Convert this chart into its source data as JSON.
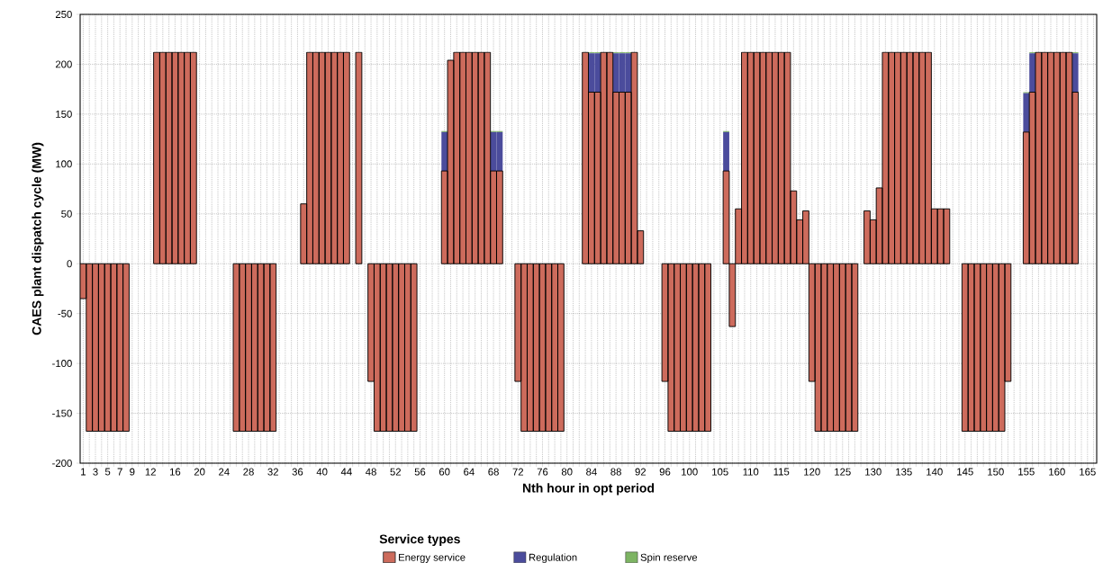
{
  "chart_data": {
    "type": "bar",
    "stacked": true,
    "xlabel": "Nth hour in opt period",
    "ylabel": "CAES plant dispatch cycle (MW)",
    "legend_title": "Service types",
    "legend": "bottom",
    "grid": true,
    "categories": [
      "1",
      null,
      "3",
      null,
      "5",
      null,
      "7",
      null,
      "9",
      null,
      null,
      "12",
      null,
      null,
      null,
      "16",
      null,
      null,
      null,
      "20",
      null,
      null,
      null,
      "24",
      null,
      null,
      null,
      "28",
      null,
      null,
      null,
      "32",
      null,
      null,
      null,
      "36",
      null,
      null,
      null,
      "40",
      null,
      null,
      null,
      "44",
      null,
      null,
      null,
      "48",
      null,
      null,
      null,
      "52",
      null,
      null,
      null,
      "56",
      null,
      null,
      null,
      "60",
      null,
      null,
      null,
      "64",
      null,
      null,
      null,
      "68",
      null,
      null,
      null,
      "72",
      null,
      null,
      null,
      "76",
      null,
      null,
      null,
      "80",
      null,
      null,
      null,
      "84",
      null,
      null,
      null,
      "88",
      null,
      null,
      null,
      "92",
      null,
      null,
      null,
      "96",
      null,
      null,
      null,
      "100",
      null,
      null,
      null,
      null,
      "105",
      null,
      null,
      null,
      null,
      "110",
      null,
      null,
      null,
      null,
      "115",
      null,
      null,
      null,
      null,
      "120",
      null,
      null,
      null,
      null,
      "125",
      null,
      null,
      null,
      null,
      "130",
      null,
      null,
      null,
      null,
      "135",
      null,
      null,
      null,
      null,
      "140",
      null,
      null,
      null,
      null,
      "145",
      null,
      null,
      null,
      null,
      "150",
      null,
      null,
      null,
      null,
      "155",
      null,
      null,
      null,
      null,
      "160",
      null,
      null,
      null,
      null,
      "165",
      null
    ],
    "series": [
      {
        "name": "Energy service",
        "color": "#cd6b5c",
        "values": [
          -35,
          -168,
          -168,
          -168,
          -168,
          -168,
          -168,
          -168,
          0,
          0,
          0,
          0,
          212,
          212,
          212,
          212,
          212,
          212,
          212,
          0,
          0,
          0,
          0,
          0,
          0,
          -168,
          -168,
          -168,
          -168,
          -168,
          -168,
          -168,
          0,
          0,
          0,
          0,
          60,
          212,
          212,
          212,
          212,
          212,
          212,
          212,
          0,
          212,
          0,
          -118,
          -168,
          -168,
          -168,
          -168,
          -168,
          -168,
          -168,
          0,
          0,
          0,
          0,
          93,
          204,
          212,
          212,
          212,
          212,
          212,
          212,
          93,
          93,
          0,
          0,
          -118,
          -168,
          -168,
          -168,
          -168,
          -168,
          -168,
          -168,
          0,
          0,
          0,
          212,
          172,
          172,
          212,
          212,
          172,
          172,
          172,
          212,
          33,
          0,
          0,
          0,
          -118,
          -168,
          -168,
          -168,
          -168,
          -168,
          -168,
          -168,
          0,
          0,
          93,
          -63,
          55,
          212,
          212,
          212,
          212,
          212,
          212,
          212,
          212,
          73,
          44,
          53,
          -118,
          -168,
          -168,
          -168,
          -168,
          -168,
          -168,
          -168,
          0,
          53,
          44,
          76,
          212,
          212,
          212,
          212,
          212,
          212,
          212,
          212,
          55,
          55,
          55,
          0,
          0,
          -168,
          -168,
          -168,
          -168,
          -168,
          -168,
          -168,
          -118,
          0,
          0,
          132,
          172,
          212,
          212,
          212,
          212,
          212,
          212,
          172,
          0,
          0,
          0
        ]
      },
      {
        "name": "Regulation",
        "color": "#4b4c9c",
        "values": [
          0,
          0,
          0,
          0,
          0,
          0,
          0,
          0,
          0,
          0,
          0,
          0,
          0,
          0,
          0,
          0,
          0,
          0,
          0,
          0,
          0,
          0,
          0,
          0,
          0,
          0,
          0,
          0,
          0,
          0,
          0,
          0,
          0,
          0,
          0,
          0,
          0,
          0,
          0,
          0,
          0,
          0,
          0,
          0,
          0,
          0,
          0,
          0,
          0,
          0,
          0,
          0,
          0,
          0,
          0,
          0,
          0,
          0,
          0,
          39,
          0,
          0,
          0,
          0,
          0,
          0,
          0,
          39,
          39,
          0,
          0,
          0,
          0,
          0,
          0,
          0,
          0,
          0,
          0,
          0,
          0,
          0,
          0,
          39,
          39,
          0,
          0,
          39,
          39,
          39,
          0,
          0,
          0,
          0,
          0,
          0,
          0,
          0,
          0,
          0,
          0,
          0,
          0,
          0,
          0,
          39,
          0,
          0,
          0,
          0,
          0,
          0,
          0,
          0,
          0,
          0,
          0,
          0,
          0,
          0,
          0,
          0,
          0,
          0,
          0,
          0,
          0,
          0,
          0,
          0,
          0,
          0,
          0,
          0,
          0,
          0,
          0,
          0,
          0,
          0,
          0,
          0,
          0,
          0,
          0,
          0,
          0,
          0,
          0,
          0,
          0,
          0,
          0,
          0,
          39,
          39,
          0,
          0,
          0,
          0,
          0,
          0,
          39,
          0,
          0,
          0
        ]
      },
      {
        "name": "Spin reserve",
        "color": "#7db463",
        "values": [
          0,
          0,
          0,
          0,
          0,
          0,
          0,
          0,
          0,
          0,
          0,
          0,
          0,
          0,
          0,
          0,
          0,
          0,
          0,
          0,
          0,
          0,
          0,
          0,
          0,
          0,
          0,
          0,
          0,
          0,
          0,
          0,
          0,
          0,
          0,
          0,
          0,
          0,
          0,
          0,
          0,
          0,
          0,
          0,
          0,
          0,
          0,
          0,
          0,
          0,
          0,
          0,
          0,
          0,
          0,
          0,
          0,
          0,
          0,
          1,
          0,
          0,
          0,
          0,
          0,
          0,
          0,
          1,
          1,
          0,
          0,
          0,
          0,
          0,
          0,
          0,
          0,
          0,
          0,
          0,
          0,
          0,
          0,
          1,
          1,
          0,
          0,
          1,
          1,
          1,
          0,
          0,
          0,
          0,
          0,
          0,
          0,
          0,
          0,
          0,
          0,
          0,
          0,
          0,
          0,
          1,
          0,
          0,
          0,
          0,
          0,
          0,
          0,
          0,
          0,
          0,
          0,
          0,
          0,
          0,
          0,
          0,
          0,
          0,
          0,
          0,
          0,
          0,
          0,
          0,
          0,
          0,
          0,
          0,
          0,
          0,
          0,
          0,
          0,
          0,
          0,
          0,
          0,
          0,
          0,
          0,
          0,
          0,
          0,
          0,
          0,
          0,
          0,
          0,
          1,
          1,
          0,
          0,
          0,
          0,
          0,
          0,
          1,
          0,
          0,
          0
        ]
      }
    ],
    "ylim": [
      -200,
      250
    ],
    "yticks": [
      -200,
      -150,
      -100,
      -50,
      0,
      50,
      100,
      150,
      200,
      250
    ]
  }
}
